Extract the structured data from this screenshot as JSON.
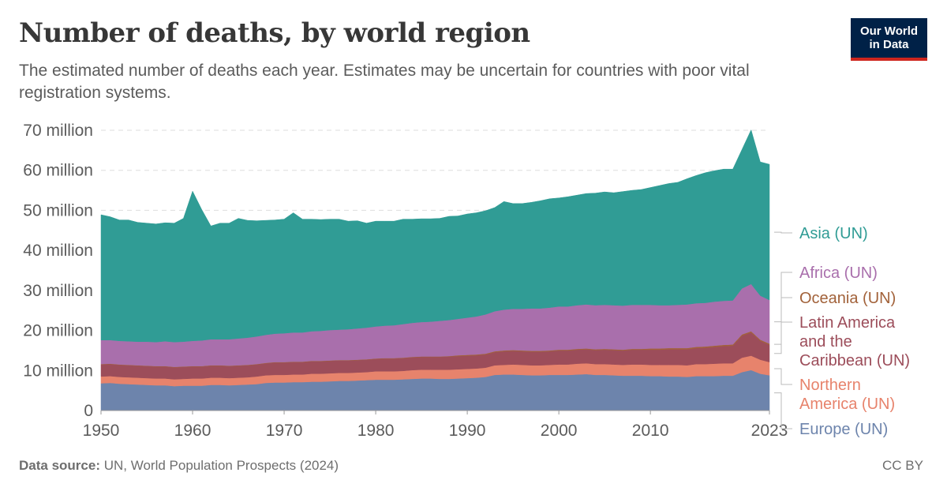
{
  "header": {
    "title": "Number of deaths, by world region",
    "subtitle": "The estimated number of deaths each year. Estimates may be uncertain for countries with poor vital registration systems."
  },
  "logo": {
    "line1": "Our World",
    "line2": "in Data",
    "bg": "#002147",
    "accent": "#ce261e"
  },
  "footer": {
    "source_label": "Data source:",
    "source_text": "UN, World Population Prospects (2024)",
    "license": "CC BY"
  },
  "chart_data": {
    "type": "area",
    "stacked": true,
    "x": [
      1950,
      1951,
      1952,
      1953,
      1954,
      1955,
      1956,
      1957,
      1958,
      1959,
      1960,
      1961,
      1962,
      1963,
      1964,
      1965,
      1966,
      1967,
      1968,
      1969,
      1970,
      1971,
      1972,
      1973,
      1974,
      1975,
      1976,
      1977,
      1978,
      1979,
      1980,
      1981,
      1982,
      1983,
      1984,
      1985,
      1986,
      1987,
      1988,
      1989,
      1990,
      1991,
      1992,
      1993,
      1994,
      1995,
      1996,
      1997,
      1998,
      1999,
      2000,
      2001,
      2002,
      2003,
      2004,
      2005,
      2006,
      2007,
      2008,
      2009,
      2010,
      2011,
      2012,
      2013,
      2014,
      2015,
      2016,
      2017,
      2018,
      2019,
      2020,
      2021,
      2022,
      2023
    ],
    "xlim": [
      1950,
      2023
    ],
    "x_ticks": [
      "1950",
      "1960",
      "1970",
      "1980",
      "1990",
      "2000",
      "2010",
      "2023"
    ],
    "ylim": [
      0,
      70
    ],
    "y_ticks": [
      "0",
      "10 million",
      "20 million",
      "30 million",
      "40 million",
      "50 million",
      "60 million",
      "70 million"
    ],
    "y_unit": "million",
    "grid": "horizontal dashed",
    "legend": "right",
    "series": [
      {
        "name": "Europe (UN)",
        "color": "#6d84ac",
        "values": [
          6.8,
          6.9,
          6.7,
          6.6,
          6.5,
          6.4,
          6.3,
          6.3,
          6.1,
          6.2,
          6.2,
          6.2,
          6.4,
          6.4,
          6.3,
          6.4,
          6.5,
          6.6,
          6.9,
          7.0,
          7.0,
          7.1,
          7.1,
          7.2,
          7.2,
          7.3,
          7.4,
          7.4,
          7.5,
          7.6,
          7.7,
          7.7,
          7.7,
          7.8,
          7.9,
          8.0,
          8.0,
          7.9,
          7.9,
          8.0,
          8.1,
          8.2,
          8.4,
          8.9,
          9.0,
          9.0,
          8.9,
          8.8,
          8.8,
          8.9,
          8.9,
          8.9,
          9.0,
          9.1,
          8.9,
          8.9,
          8.8,
          8.7,
          8.7,
          8.7,
          8.6,
          8.6,
          8.5,
          8.5,
          8.4,
          8.6,
          8.6,
          8.6,
          8.7,
          8.7,
          9.6,
          10.1,
          9.2,
          8.8
        ]
      },
      {
        "name": "Northern America (UN)",
        "color": "#e7836c",
        "values": [
          1.7,
          1.7,
          1.7,
          1.7,
          1.7,
          1.7,
          1.7,
          1.7,
          1.7,
          1.7,
          1.8,
          1.8,
          1.8,
          1.8,
          1.8,
          1.8,
          1.8,
          1.9,
          1.9,
          1.9,
          1.9,
          1.9,
          1.9,
          2.0,
          2.0,
          2.0,
          2.0,
          2.0,
          2.0,
          2.0,
          2.1,
          2.1,
          2.1,
          2.1,
          2.2,
          2.2,
          2.2,
          2.3,
          2.3,
          2.3,
          2.3,
          2.3,
          2.3,
          2.4,
          2.4,
          2.5,
          2.5,
          2.5,
          2.5,
          2.5,
          2.6,
          2.6,
          2.7,
          2.7,
          2.7,
          2.7,
          2.7,
          2.7,
          2.8,
          2.8,
          2.8,
          2.8,
          2.9,
          2.9,
          2.9,
          3.0,
          3.0,
          3.1,
          3.1,
          3.1,
          3.6,
          3.6,
          3.5,
          3.3
        ]
      },
      {
        "name": "Latin America and the Caribbean (UN)",
        "color": "#9c4d5a",
        "values": [
          3.0,
          3.0,
          3.0,
          3.0,
          3.0,
          3.0,
          3.0,
          3.0,
          3.0,
          3.0,
          3.0,
          3.0,
          3.0,
          3.0,
          3.0,
          3.0,
          3.0,
          3.0,
          3.0,
          3.1,
          3.1,
          3.1,
          3.1,
          3.1,
          3.1,
          3.1,
          3.1,
          3.1,
          3.1,
          3.1,
          3.1,
          3.2,
          3.2,
          3.2,
          3.2,
          3.2,
          3.2,
          3.2,
          3.3,
          3.3,
          3.3,
          3.3,
          3.3,
          3.3,
          3.4,
          3.4,
          3.4,
          3.4,
          3.4,
          3.4,
          3.5,
          3.5,
          3.5,
          3.5,
          3.5,
          3.6,
          3.6,
          3.6,
          3.7,
          3.7,
          3.8,
          3.8,
          3.9,
          3.9,
          4.0,
          4.0,
          4.1,
          4.2,
          4.3,
          4.4,
          5.5,
          5.8,
          4.7,
          4.3
        ]
      },
      {
        "name": "Oceania (UN)",
        "color": "#a2623a",
        "values": [
          0.1,
          0.1,
          0.1,
          0.1,
          0.1,
          0.1,
          0.1,
          0.1,
          0.1,
          0.1,
          0.1,
          0.1,
          0.1,
          0.1,
          0.1,
          0.1,
          0.1,
          0.1,
          0.1,
          0.1,
          0.1,
          0.1,
          0.1,
          0.1,
          0.1,
          0.1,
          0.1,
          0.1,
          0.1,
          0.1,
          0.1,
          0.1,
          0.1,
          0.1,
          0.1,
          0.1,
          0.1,
          0.1,
          0.1,
          0.2,
          0.2,
          0.2,
          0.2,
          0.2,
          0.2,
          0.2,
          0.2,
          0.2,
          0.2,
          0.2,
          0.2,
          0.2,
          0.2,
          0.2,
          0.2,
          0.2,
          0.2,
          0.2,
          0.2,
          0.2,
          0.3,
          0.3,
          0.3,
          0.3,
          0.3,
          0.3,
          0.3,
          0.3,
          0.3,
          0.3,
          0.3,
          0.3,
          0.3,
          0.3
        ]
      },
      {
        "name": "Africa (UN)",
        "color": "#a96fac",
        "values": [
          6.0,
          5.9,
          5.9,
          5.9,
          5.9,
          6.0,
          6.0,
          6.2,
          6.2,
          6.2,
          6.3,
          6.4,
          6.5,
          6.5,
          6.6,
          6.7,
          6.8,
          6.9,
          7.0,
          7.1,
          7.2,
          7.3,
          7.3,
          7.4,
          7.5,
          7.6,
          7.6,
          7.7,
          7.8,
          7.9,
          8.0,
          8.1,
          8.2,
          8.4,
          8.5,
          8.6,
          8.7,
          8.9,
          9.0,
          9.1,
          9.3,
          9.5,
          9.8,
          10.0,
          10.2,
          10.3,
          10.4,
          10.6,
          10.6,
          10.7,
          10.8,
          10.8,
          10.9,
          11.0,
          11.0,
          11.0,
          11.0,
          11.0,
          11.0,
          11.0,
          10.9,
          10.8,
          10.7,
          10.8,
          10.9,
          10.9,
          10.9,
          11.0,
          11.0,
          11.0,
          11.5,
          11.8,
          11.0,
          10.9
        ]
      },
      {
        "name": "Asia (UN)",
        "color": "#309c95",
        "values": [
          31.3,
          30.8,
          30.2,
          30.3,
          29.8,
          29.6,
          29.5,
          29.6,
          29.7,
          30.8,
          37.4,
          32.7,
          28.3,
          29.0,
          29.0,
          30.0,
          29.3,
          28.9,
          28.6,
          28.4,
          28.5,
          29.9,
          28.3,
          28.0,
          27.8,
          27.7,
          27.6,
          27.0,
          26.9,
          26.1,
          26.3,
          26.1,
          26.0,
          26.2,
          25.9,
          25.8,
          25.7,
          25.6,
          25.9,
          25.7,
          25.9,
          25.9,
          25.9,
          25.9,
          27.0,
          26.3,
          26.3,
          26.5,
          26.9,
          27.2,
          27.1,
          27.4,
          27.5,
          27.7,
          28.0,
          28.2,
          28.1,
          28.5,
          28.6,
          28.8,
          29.3,
          29.9,
          30.4,
          30.6,
          31.4,
          31.9,
          32.5,
          32.7,
          32.9,
          32.8,
          34.7,
          38.5,
          33.4,
          33.9
        ]
      }
    ],
    "legend_labels": [
      {
        "key": "asia",
        "lines": [
          "Asia (UN)"
        ]
      },
      {
        "key": "africa",
        "lines": [
          "Africa (UN)"
        ]
      },
      {
        "key": "oceania",
        "lines": [
          "Oceania (UN)"
        ]
      },
      {
        "key": "latam",
        "lines": [
          "Latin America",
          "and the",
          "Caribbean (UN)"
        ]
      },
      {
        "key": "na",
        "lines": [
          "Northern",
          "America (UN)"
        ]
      },
      {
        "key": "europe",
        "lines": [
          "Europe (UN)"
        ]
      }
    ]
  }
}
